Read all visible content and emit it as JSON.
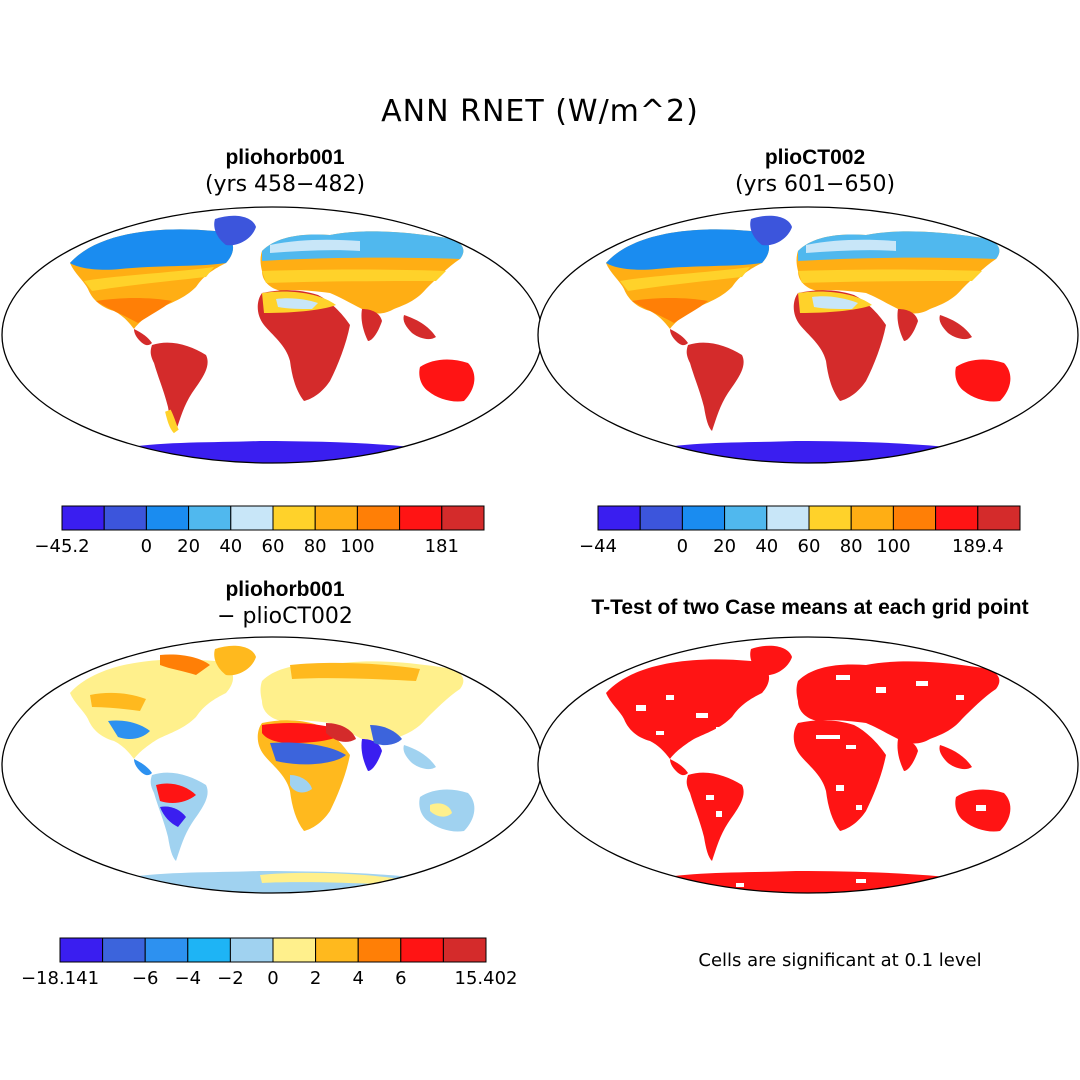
{
  "main_title": "ANN RNET (W/m^2)",
  "panels": [
    {
      "title": "pliohorb001",
      "subtitle": "(yrs 458−482)",
      "colorbar": {
        "colors": [
          "#3a1ef0",
          "#3c55dc",
          "#1a8cf0",
          "#50b8ee",
          "#c8e6f8",
          "#ffd22a",
          "#ffae14",
          "#ff7f06",
          "#ff1414",
          "#d42b2b"
        ],
        "labels": [
          "−45.2",
          "0",
          "20",
          "40",
          "60",
          "80",
          "100",
          "181"
        ],
        "label_edges": [
          0,
          2,
          3,
          4,
          5,
          6,
          7,
          9
        ]
      }
    },
    {
      "title": "plioCT002",
      "subtitle": "(yrs 601−650)",
      "colorbar": {
        "colors": [
          "#3a1ef0",
          "#3c55dc",
          "#1a8cf0",
          "#50b8ee",
          "#c8e6f8",
          "#ffd22a",
          "#ffae14",
          "#ff7f06",
          "#ff1414",
          "#d42b2b"
        ],
        "labels": [
          "−44",
          "0",
          "20",
          "40",
          "60",
          "80",
          "100",
          "189.4"
        ],
        "label_edges": [
          0,
          2,
          3,
          4,
          5,
          6,
          7,
          9
        ]
      }
    },
    {
      "title": "pliohorb001",
      "subtitle": "− plioCT002",
      "colorbar": {
        "colors": [
          "#3a1ef0",
          "#3c64dc",
          "#2d91f0",
          "#1eb4f5",
          "#a0d2f0",
          "#fff08c",
          "#ffb91e",
          "#ff7f06",
          "#ff1414",
          "#d42b2b"
        ],
        "labels": [
          "−18.141",
          "−6",
          "−4",
          "−2",
          "0",
          "2",
          "4",
          "6",
          "15.402"
        ],
        "label_edges": [
          0,
          2,
          3,
          4,
          5,
          6,
          7,
          8,
          10
        ]
      }
    },
    {
      "title": "T-Test of two Case means at each grid point",
      "note": "Cells are significant at 0.1 level"
    }
  ]
}
